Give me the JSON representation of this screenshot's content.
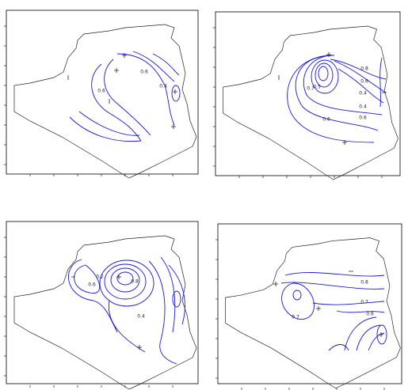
{
  "panels": [
    {
      "contour_labels": [
        "0.6",
        "0.4",
        "0.6"
      ]
    },
    {
      "contour_labels": [
        "0.8",
        "0.6",
        "0.4",
        "0.7",
        "0.5",
        "0.6",
        "0.4",
        "0.6"
      ]
    },
    {
      "contour_labels": [
        "0.2",
        "0.6",
        "0.4",
        "0.8"
      ]
    },
    {
      "contour_labels": [
        "0.8",
        "0.7",
        "0.6",
        "0.7"
      ]
    }
  ]
}
